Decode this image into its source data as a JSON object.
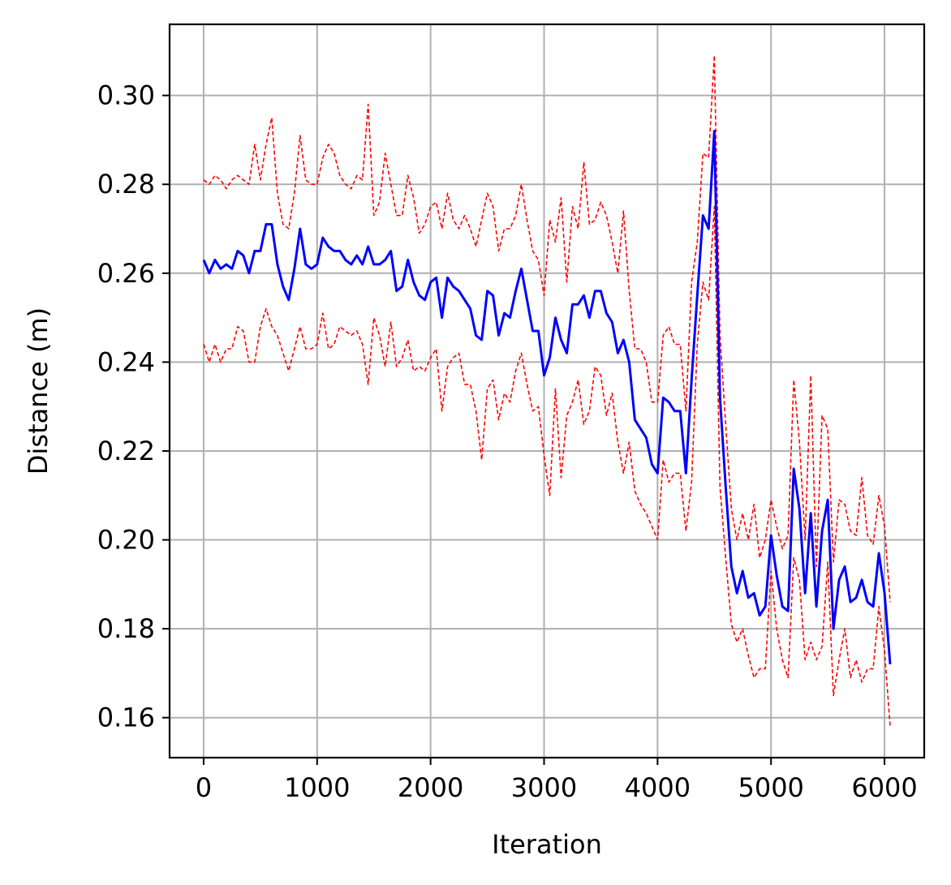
{
  "chart_data": {
    "type": "line",
    "title": "",
    "xlabel": "Iteration",
    "ylabel": "Distance (m)",
    "xlim": [
      -300,
      6350
    ],
    "ylim": [
      0.151,
      0.316
    ],
    "xticks": [
      0,
      1000,
      2000,
      3000,
      4000,
      5000,
      6000
    ],
    "xtick_labels": [
      "0",
      "1000",
      "2000",
      "3000",
      "4000",
      "5000",
      "6000"
    ],
    "yticks": [
      0.16,
      0.18,
      0.2,
      0.22,
      0.24,
      0.26,
      0.28,
      0.3
    ],
    "ytick_labels": [
      "0.16",
      "0.18",
      "0.20",
      "0.22",
      "0.24",
      "0.26",
      "0.28",
      "0.30"
    ],
    "grid": true,
    "colors": {
      "mean": "#0000ff",
      "bounds": "#ff0000",
      "grid": "#b0b0b0"
    },
    "x": [
      0,
      50,
      100,
      150,
      200,
      250,
      300,
      350,
      400,
      450,
      500,
      550,
      600,
      650,
      700,
      750,
      800,
      850,
      900,
      950,
      1000,
      1050,
      1100,
      1150,
      1200,
      1250,
      1300,
      1350,
      1400,
      1450,
      1500,
      1550,
      1600,
      1650,
      1700,
      1750,
      1800,
      1850,
      1900,
      1950,
      2000,
      2050,
      2100,
      2150,
      2200,
      2250,
      2300,
      2350,
      2400,
      2450,
      2500,
      2550,
      2600,
      2650,
      2700,
      2750,
      2800,
      2850,
      2900,
      2950,
      3000,
      3050,
      3100,
      3150,
      3200,
      3250,
      3300,
      3350,
      3400,
      3450,
      3500,
      3550,
      3600,
      3650,
      3700,
      3750,
      3800,
      3850,
      3900,
      3950,
      4000,
      4050,
      4100,
      4150,
      4200,
      4250,
      4300,
      4350,
      4400,
      4450,
      4500,
      4550,
      4600,
      4650,
      4700,
      4750,
      4800,
      4850,
      4900,
      4950,
      5000,
      5050,
      5100,
      5150,
      5200,
      5250,
      5300,
      5350,
      5400,
      5450,
      5500,
      5550,
      5600,
      5650,
      5700,
      5750,
      5800,
      5850,
      5900,
      5950,
      6000,
      6050
    ],
    "series": [
      {
        "role": "mean",
        "style": "solid",
        "values": [
          0.263,
          0.26,
          0.263,
          0.261,
          0.262,
          0.261,
          0.265,
          0.264,
          0.26,
          0.265,
          0.265,
          0.271,
          0.271,
          0.262,
          0.257,
          0.254,
          0.261,
          0.27,
          0.262,
          0.261,
          0.262,
          0.268,
          0.266,
          0.265,
          0.265,
          0.263,
          0.262,
          0.264,
          0.262,
          0.266,
          0.262,
          0.262,
          0.263,
          0.265,
          0.256,
          0.257,
          0.263,
          0.258,
          0.255,
          0.254,
          0.258,
          0.259,
          0.25,
          0.259,
          0.257,
          0.256,
          0.254,
          0.252,
          0.246,
          0.245,
          0.256,
          0.255,
          0.246,
          0.251,
          0.25,
          0.256,
          0.261,
          0.254,
          0.247,
          0.247,
          0.237,
          0.241,
          0.25,
          0.245,
          0.242,
          0.253,
          0.253,
          0.255,
          0.25,
          0.256,
          0.256,
          0.251,
          0.249,
          0.242,
          0.245,
          0.24,
          0.227,
          0.225,
          0.223,
          0.217,
          0.215,
          0.232,
          0.231,
          0.229,
          0.229,
          0.215,
          0.236,
          0.255,
          0.273,
          0.27,
          0.292,
          0.232,
          0.212,
          0.194,
          0.188,
          0.193,
          0.187,
          0.188,
          0.183,
          0.185,
          0.201,
          0.192,
          0.185,
          0.184,
          0.216,
          0.207,
          0.188,
          0.206,
          0.185,
          0.202,
          0.209,
          0.18,
          0.191,
          0.194,
          0.186,
          0.187,
          0.191,
          0.186,
          0.185,
          0.197,
          0.188,
          0.172
        ]
      },
      {
        "role": "upper",
        "style": "dashed",
        "values": [
          0.281,
          0.28,
          0.282,
          0.281,
          0.279,
          0.281,
          0.282,
          0.281,
          0.28,
          0.289,
          0.281,
          0.289,
          0.295,
          0.278,
          0.271,
          0.27,
          0.278,
          0.291,
          0.281,
          0.28,
          0.28,
          0.286,
          0.289,
          0.287,
          0.282,
          0.28,
          0.279,
          0.282,
          0.281,
          0.298,
          0.273,
          0.276,
          0.287,
          0.28,
          0.273,
          0.273,
          0.282,
          0.277,
          0.269,
          0.271,
          0.275,
          0.276,
          0.27,
          0.278,
          0.272,
          0.27,
          0.273,
          0.27,
          0.266,
          0.272,
          0.278,
          0.275,
          0.265,
          0.27,
          0.27,
          0.273,
          0.28,
          0.272,
          0.265,
          0.263,
          0.255,
          0.272,
          0.267,
          0.277,
          0.258,
          0.275,
          0.27,
          0.285,
          0.271,
          0.272,
          0.276,
          0.273,
          0.267,
          0.26,
          0.274,
          0.256,
          0.243,
          0.243,
          0.24,
          0.231,
          0.231,
          0.246,
          0.248,
          0.244,
          0.244,
          0.229,
          0.258,
          0.267,
          0.287,
          0.286,
          0.309,
          0.246,
          0.226,
          0.207,
          0.2,
          0.206,
          0.2,
          0.208,
          0.196,
          0.2,
          0.209,
          0.203,
          0.198,
          0.201,
          0.236,
          0.222,
          0.2,
          0.237,
          0.194,
          0.228,
          0.225,
          0.195,
          0.209,
          0.208,
          0.202,
          0.201,
          0.214,
          0.201,
          0.199,
          0.21,
          0.203,
          0.186
        ]
      },
      {
        "role": "lower",
        "style": "dashed",
        "values": [
          0.244,
          0.24,
          0.244,
          0.24,
          0.243,
          0.243,
          0.248,
          0.247,
          0.24,
          0.24,
          0.248,
          0.252,
          0.248,
          0.246,
          0.242,
          0.238,
          0.243,
          0.248,
          0.243,
          0.243,
          0.244,
          0.251,
          0.243,
          0.244,
          0.248,
          0.247,
          0.246,
          0.247,
          0.244,
          0.235,
          0.25,
          0.246,
          0.239,
          0.249,
          0.239,
          0.241,
          0.245,
          0.238,
          0.239,
          0.238,
          0.241,
          0.243,
          0.229,
          0.239,
          0.241,
          0.242,
          0.235,
          0.235,
          0.229,
          0.218,
          0.234,
          0.236,
          0.227,
          0.233,
          0.231,
          0.238,
          0.242,
          0.235,
          0.229,
          0.23,
          0.219,
          0.21,
          0.234,
          0.214,
          0.228,
          0.231,
          0.236,
          0.226,
          0.229,
          0.239,
          0.237,
          0.228,
          0.233,
          0.222,
          0.215,
          0.222,
          0.211,
          0.208,
          0.206,
          0.203,
          0.2,
          0.218,
          0.213,
          0.215,
          0.215,
          0.202,
          0.213,
          0.244,
          0.258,
          0.254,
          0.275,
          0.212,
          0.196,
          0.181,
          0.177,
          0.18,
          0.174,
          0.169,
          0.171,
          0.171,
          0.193,
          0.18,
          0.173,
          0.169,
          0.196,
          0.191,
          0.173,
          0.177,
          0.173,
          0.176,
          0.195,
          0.165,
          0.173,
          0.18,
          0.169,
          0.173,
          0.168,
          0.171,
          0.171,
          0.185,
          0.175,
          0.158
        ]
      }
    ]
  }
}
